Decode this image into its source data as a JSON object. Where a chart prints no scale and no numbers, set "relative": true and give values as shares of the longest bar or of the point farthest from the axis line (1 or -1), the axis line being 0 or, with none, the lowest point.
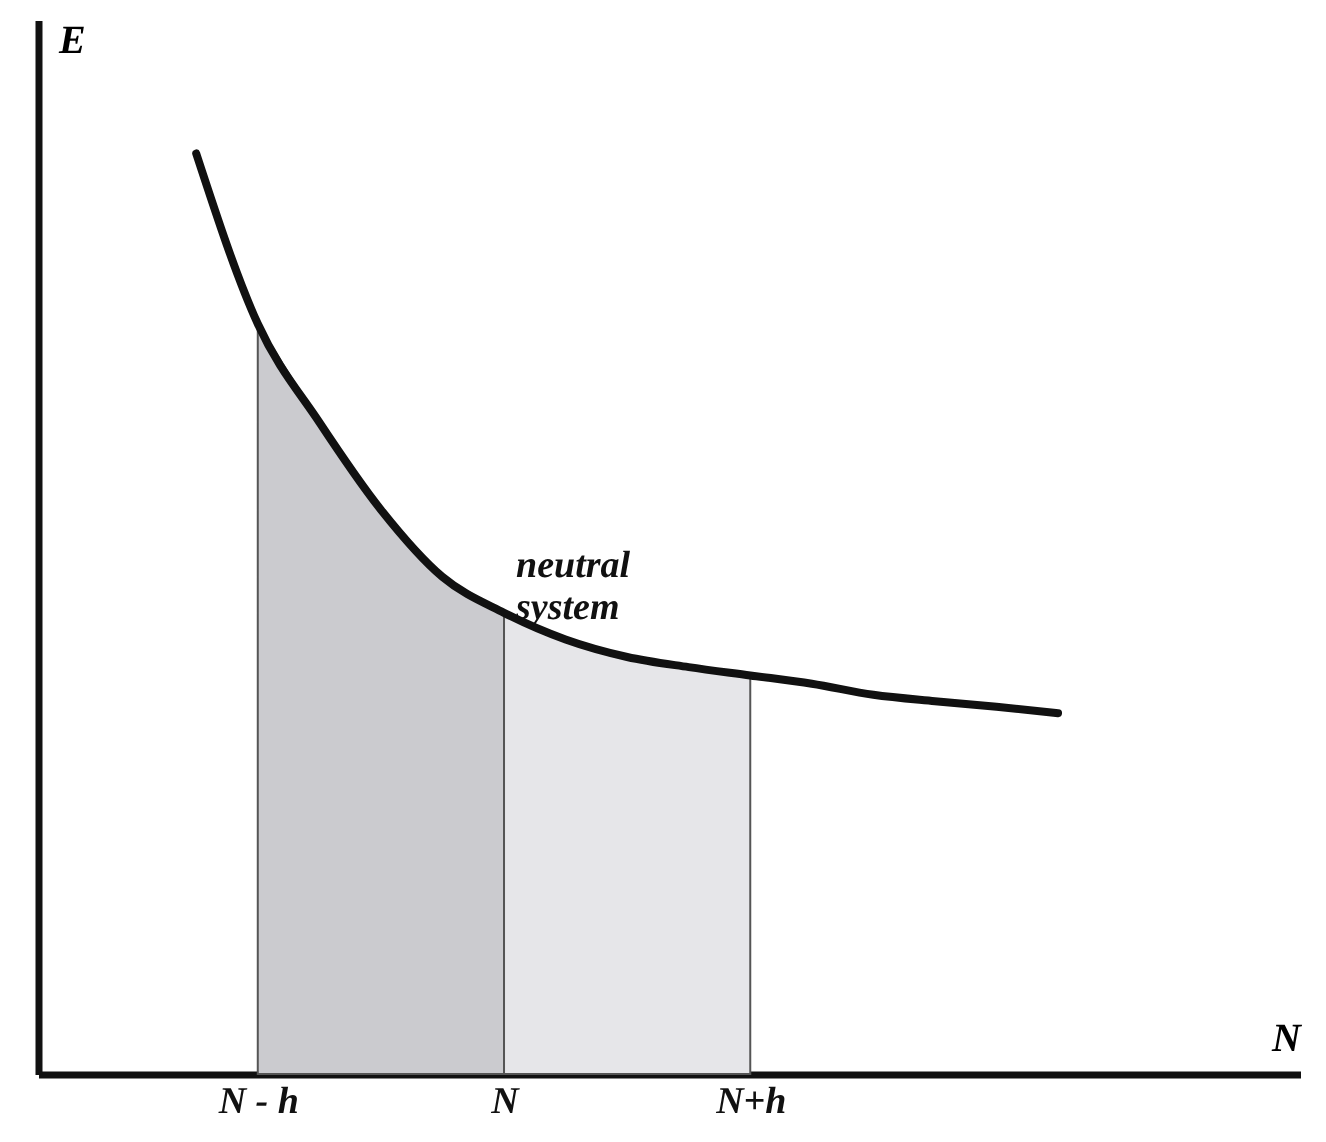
{
  "chart_data": {
    "type": "line",
    "relative": true,
    "xlabel": "N",
    "ylabel": "E",
    "categories": [
      null,
      "N - h",
      null,
      null,
      null,
      "N",
      null,
      null,
      null,
      "N+h",
      null,
      null,
      null,
      null,
      null
    ],
    "tick_labels": "x",
    "grid": false,
    "legend": false,
    "annotations": [
      {
        "text": "neutral system",
        "x": "N",
        "y": 0.501
      }
    ],
    "series": [
      {
        "type": "area",
        "color": "#cbcbcf",
        "values": [
          null,
          0.815,
          0.708,
          0.613,
          0.54,
          0.501,
          null,
          null,
          null,
          null,
          null,
          null,
          null,
          null,
          null
        ]
      },
      {
        "type": "area",
        "color": "#e6e6e9",
        "values": [
          null,
          null,
          null,
          null,
          null,
          0.501,
          0.472,
          0.453,
          0.442,
          0.433,
          null,
          null,
          null,
          null,
          null
        ]
      },
      {
        "type": "line",
        "color": "#111111",
        "values": [
          1.0,
          0.815,
          0.708,
          0.613,
          0.54,
          0.501,
          0.472,
          0.453,
          0.442,
          0.433,
          0.424,
          0.412,
          0.405,
          0.399,
          0.392
        ]
      }
    ]
  }
}
